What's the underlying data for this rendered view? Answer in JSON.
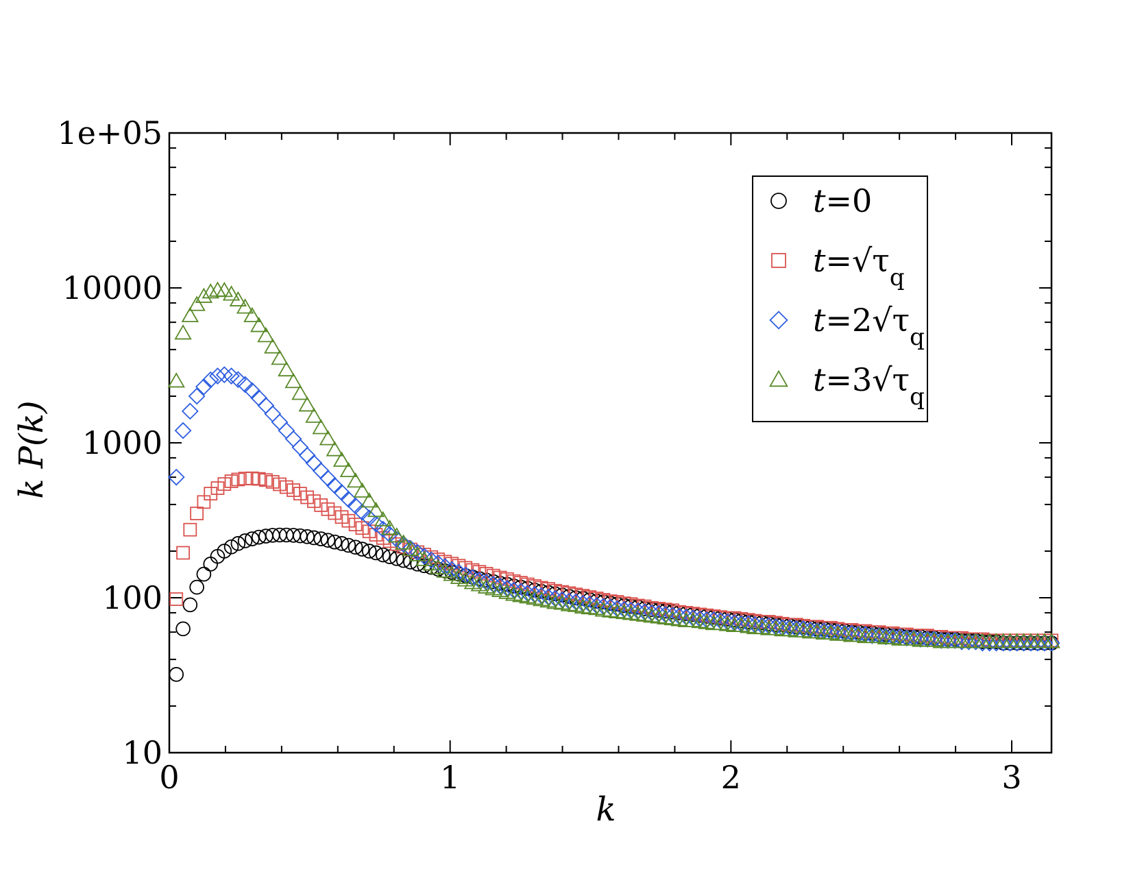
{
  "chart_data": {
    "type": "scatter",
    "title": "",
    "xlabel": "k",
    "ylabel": "k P(k)",
    "xscale": "linear",
    "yscale": "log",
    "xlim": [
      0,
      3.1416
    ],
    "ylim": [
      10,
      100000
    ],
    "grid": false,
    "legend_position": "top-right",
    "x_ticks": [
      {
        "value": 0,
        "label": "0"
      },
      {
        "value": 1,
        "label": "1"
      },
      {
        "value": 2,
        "label": "2"
      },
      {
        "value": 3,
        "label": "3"
      }
    ],
    "y_ticks": [
      {
        "value": 10,
        "label": "10"
      },
      {
        "value": 100,
        "label": "100"
      },
      {
        "value": 1000,
        "label": "1000"
      },
      {
        "value": 10000,
        "label": "10000"
      },
      {
        "value": 100000,
        "label": "1e+05"
      }
    ],
    "series": [
      {
        "name": "t=0",
        "legend": {
          "t": "t",
          "rest": "=0",
          "sub": ""
        },
        "marker": "circle",
        "color": "#000000",
        "x": [
          0.025,
          0.049,
          0.074,
          0.098,
          0.123,
          0.147,
          0.172,
          0.196,
          0.221,
          0.245,
          0.27,
          0.295,
          0.319,
          0.344,
          0.368,
          0.393,
          0.417,
          0.442,
          0.466,
          0.491,
          0.515,
          0.54,
          0.565,
          0.589,
          0.614,
          0.638,
          0.663,
          0.687,
          0.712,
          0.736,
          0.761,
          0.785,
          0.81,
          0.834,
          0.859,
          0.884,
          0.908,
          0.933,
          0.957,
          0.982,
          1.006,
          1.031,
          1.055,
          1.08,
          1.104,
          1.129,
          1.154,
          1.178,
          1.203,
          1.227,
          1.252,
          1.276,
          1.301,
          1.325,
          1.35,
          1.374,
          1.399,
          1.424,
          1.448,
          1.473,
          1.497,
          1.522,
          1.546,
          1.571,
          1.595,
          1.62,
          1.644,
          1.669,
          1.693,
          1.718,
          1.743,
          1.767,
          1.792,
          1.816,
          1.841,
          1.865,
          1.89,
          1.914,
          1.939,
          1.963,
          1.988,
          2.013,
          2.037,
          2.062,
          2.086,
          2.111,
          2.135,
          2.16,
          2.184,
          2.209,
          2.233,
          2.258,
          2.283,
          2.307,
          2.332,
          2.356,
          2.381,
          2.405,
          2.43,
          2.454,
          2.479,
          2.503,
          2.528,
          2.552,
          2.577,
          2.602,
          2.626,
          2.651,
          2.675,
          2.7,
          2.724,
          2.749,
          2.773,
          2.798,
          2.822,
          2.847,
          2.872,
          2.896,
          2.921,
          2.945,
          2.97,
          2.994,
          3.019,
          3.043,
          3.068,
          3.092,
          3.117,
          3.142
        ],
        "y": [
          32.0,
          63.0,
          90.0,
          117.0,
          142.0,
          165.0,
          185.0,
          200.0,
          213.0,
          224.0,
          233.0,
          240.0,
          246.0,
          250.0,
          253.0,
          254.0,
          254.0,
          253.0,
          251.0,
          248.0,
          244.0,
          240.0,
          235.0,
          229.0,
          224.0,
          218.0,
          212.0,
          206.0,
          200.0,
          195.0,
          189.0,
          184.0,
          179.0,
          174.0,
          170.0,
          165.0,
          161.0,
          157.0,
          153.0,
          149.0,
          146.0,
          142.0,
          139.0,
          136.0,
          133.0,
          130.0,
          127.0,
          124.0,
          122.0,
          119.0,
          117.0,
          115.0,
          112.0,
          110.0,
          108.0,
          106.0,
          104.0,
          102.0,
          100.0,
          99.0,
          97.0,
          95.0,
          94.0,
          92.0,
          91.0,
          89.0,
          88.0,
          87.0,
          85.0,
          84.0,
          83.0,
          82.0,
          81.0,
          80.0,
          79.0,
          78.0,
          77.0,
          76.0,
          75.0,
          74.0,
          73.0,
          72.0,
          71.0,
          70.0,
          70.0,
          69.0,
          68.0,
          67.0,
          67.0,
          66.0,
          65.0,
          65.0,
          64.0,
          63.0,
          63.0,
          62.0,
          62.0,
          61.0,
          60.0,
          60.0,
          59.0,
          59.0,
          58.0,
          58.0,
          57.0,
          57.0,
          56.0,
          56.0,
          56.0,
          55.0,
          55.0,
          54.0,
          54.0,
          54.0,
          53.0,
          53.0,
          53.0,
          52.0,
          52.0,
          52.0,
          51.0,
          51.0,
          51.0,
          51.0,
          51.0,
          51.0,
          51.0,
          51.0
        ]
      },
      {
        "name": "t=√τq",
        "legend": {
          "t": "t",
          "rest": "=√τ",
          "sub": "q"
        },
        "marker": "square",
        "color": "#d9534f",
        "x": [
          0.025,
          0.049,
          0.074,
          0.098,
          0.123,
          0.147,
          0.172,
          0.196,
          0.221,
          0.245,
          0.27,
          0.295,
          0.319,
          0.344,
          0.368,
          0.393,
          0.417,
          0.442,
          0.466,
          0.491,
          0.515,
          0.54,
          0.565,
          0.589,
          0.614,
          0.638,
          0.663,
          0.687,
          0.712,
          0.736,
          0.761,
          0.785,
          0.81,
          0.834,
          0.859,
          0.884,
          0.908,
          0.933,
          0.957,
          0.982,
          1.006,
          1.031,
          1.055,
          1.08,
          1.104,
          1.129,
          1.154,
          1.178,
          1.203,
          1.227,
          1.252,
          1.276,
          1.301,
          1.325,
          1.35,
          1.374,
          1.399,
          1.424,
          1.448,
          1.473,
          1.497,
          1.522,
          1.546,
          1.571,
          1.595,
          1.62,
          1.644,
          1.669,
          1.693,
          1.718,
          1.743,
          1.767,
          1.792,
          1.816,
          1.841,
          1.865,
          1.89,
          1.914,
          1.939,
          1.963,
          1.988,
          2.013,
          2.037,
          2.062,
          2.086,
          2.111,
          2.135,
          2.16,
          2.184,
          2.209,
          2.233,
          2.258,
          2.283,
          2.307,
          2.332,
          2.356,
          2.381,
          2.405,
          2.43,
          2.454,
          2.479,
          2.503,
          2.528,
          2.552,
          2.577,
          2.602,
          2.626,
          2.651,
          2.675,
          2.7,
          2.724,
          2.749,
          2.773,
          2.798,
          2.822,
          2.847,
          2.872,
          2.896,
          2.921,
          2.945,
          2.97,
          2.994,
          3.019,
          3.043,
          3.068,
          3.092,
          3.117,
          3.142
        ],
        "y": [
          98.0,
          195.0,
          275.0,
          350.0,
          415.0,
          470.0,
          510.0,
          542.0,
          565.0,
          580.0,
          588.0,
          590.0,
          585.0,
          575.0,
          560.0,
          540.0,
          518.0,
          495.0,
          470.0,
          445.0,
          420.0,
          396.0,
          373.0,
          352.0,
          332.0,
          314.0,
          297.0,
          282.0,
          268.0,
          255.0,
          243.0,
          232.0,
          222.0,
          213.0,
          205.0,
          197.0,
          190.0,
          183.0,
          177.0,
          171.0,
          166.0,
          161.0,
          156.0,
          151.0,
          147.0,
          143.0,
          139.0,
          135.0,
          132.0,
          128.0,
          125.0,
          122.0,
          119.0,
          116.0,
          114.0,
          111.0,
          109.0,
          107.0,
          105.0,
          103.0,
          101.0,
          99.0,
          97.0,
          95.0,
          94.0,
          92.0,
          91.0,
          89.0,
          88.0,
          86.0,
          85.0,
          84.0,
          83.0,
          81.0,
          80.0,
          79.0,
          78.0,
          77.0,
          76.0,
          75.0,
          74.0,
          74.0,
          73.0,
          72.0,
          71.0,
          70.0,
          70.0,
          69.0,
          68.0,
          67.0,
          67.0,
          66.0,
          65.0,
          65.0,
          64.0,
          64.0,
          63.0,
          62.0,
          62.0,
          61.0,
          61.0,
          60.0,
          60.0,
          59.0,
          59.0,
          58.0,
          58.0,
          57.0,
          57.0,
          57.0,
          56.0,
          56.0,
          55.0,
          55.0,
          55.0,
          54.0,
          54.0,
          54.0,
          53.0,
          53.0,
          53.0,
          53.0,
          53.0,
          53.0,
          53.0,
          53.0,
          53.0,
          53.0
        ]
      },
      {
        "name": "t=2√τq",
        "legend": {
          "t": "t",
          "rest": "=2√τ",
          "sub": "q"
        },
        "marker": "diamond",
        "color": "#2f5fe0",
        "x": [
          0.025,
          0.049,
          0.074,
          0.098,
          0.123,
          0.147,
          0.172,
          0.196,
          0.221,
          0.245,
          0.27,
          0.295,
          0.319,
          0.344,
          0.368,
          0.393,
          0.417,
          0.442,
          0.466,
          0.491,
          0.515,
          0.54,
          0.565,
          0.589,
          0.614,
          0.638,
          0.663,
          0.687,
          0.712,
          0.736,
          0.761,
          0.785,
          0.81,
          0.834,
          0.859,
          0.884,
          0.908,
          0.933,
          0.957,
          0.982,
          1.006,
          1.031,
          1.055,
          1.08,
          1.104,
          1.129,
          1.154,
          1.178,
          1.203,
          1.227,
          1.252,
          1.276,
          1.301,
          1.325,
          1.35,
          1.374,
          1.399,
          1.424,
          1.448,
          1.473,
          1.497,
          1.522,
          1.546,
          1.571,
          1.595,
          1.62,
          1.644,
          1.669,
          1.693,
          1.718,
          1.743,
          1.767,
          1.792,
          1.816,
          1.841,
          1.865,
          1.89,
          1.914,
          1.939,
          1.963,
          1.988,
          2.013,
          2.037,
          2.062,
          2.086,
          2.111,
          2.135,
          2.16,
          2.184,
          2.209,
          2.233,
          2.258,
          2.283,
          2.307,
          2.332,
          2.356,
          2.381,
          2.405,
          2.43,
          2.454,
          2.479,
          2.503,
          2.528,
          2.552,
          2.577,
          2.602,
          2.626,
          2.651,
          2.675,
          2.7,
          2.724,
          2.749,
          2.773,
          2.798,
          2.822,
          2.847,
          2.872,
          2.896,
          2.921,
          2.945,
          2.97,
          2.994,
          3.019,
          3.043,
          3.068,
          3.092,
          3.117,
          3.142
        ],
        "y": [
          600.0,
          1200.0,
          1600.0,
          2000.0,
          2300.0,
          2550.0,
          2700.0,
          2750.0,
          2700.0,
          2560.0,
          2380.0,
          2170.0,
          1950.0,
          1740.0,
          1540.0,
          1360.0,
          1200.0,
          1060.0,
          935.0,
          830.0,
          740.0,
          660.0,
          590.0,
          530.0,
          478.0,
          432.0,
          392.0,
          357.0,
          327.0,
          300.0,
          277.0,
          256.0,
          238.0,
          222.0,
          208.0,
          196.0,
          185.0,
          175.0,
          167.0,
          159.0,
          152.0,
          146.0,
          140.0,
          135.0,
          130.0,
          126.0,
          122.0,
          119.0,
          115.0,
          112.0,
          110.0,
          107.0,
          105.0,
          103.0,
          101.0,
          99.0,
          97.0,
          95.0,
          94.0,
          92.0,
          91.0,
          89.0,
          88.0,
          87.0,
          85.0,
          84.0,
          83.0,
          82.0,
          81.0,
          80.0,
          79.0,
          78.0,
          77.0,
          76.0,
          75.0,
          74.0,
          73.0,
          72.0,
          72.0,
          71.0,
          70.0,
          69.0,
          68.0,
          68.0,
          67.0,
          66.0,
          66.0,
          65.0,
          64.0,
          64.0,
          63.0,
          63.0,
          62.0,
          61.0,
          61.0,
          60.0,
          60.0,
          59.0,
          59.0,
          58.0,
          58.0,
          57.0,
          57.0,
          56.0,
          56.0,
          56.0,
          55.0,
          55.0,
          54.0,
          54.0,
          54.0,
          53.0,
          53.0,
          53.0,
          52.0,
          52.0,
          52.0,
          51.0,
          51.0,
          51.0,
          51.0,
          51.0,
          51.0,
          51.0,
          51.0,
          51.0,
          51.0,
          51.0
        ]
      },
      {
        "name": "t=3√τq",
        "legend": {
          "t": "t",
          "rest": "=3√τ",
          "sub": "q"
        },
        "marker": "triangle",
        "color": "#5a8a2a",
        "x": [
          0.025,
          0.049,
          0.074,
          0.098,
          0.123,
          0.147,
          0.172,
          0.196,
          0.221,
          0.245,
          0.27,
          0.295,
          0.319,
          0.344,
          0.368,
          0.393,
          0.417,
          0.442,
          0.466,
          0.491,
          0.515,
          0.54,
          0.565,
          0.589,
          0.614,
          0.638,
          0.663,
          0.687,
          0.712,
          0.736,
          0.761,
          0.785,
          0.81,
          0.834,
          0.859,
          0.884,
          0.908,
          0.933,
          0.957,
          0.982,
          1.006,
          1.031,
          1.055,
          1.08,
          1.104,
          1.129,
          1.154,
          1.178,
          1.203,
          1.227,
          1.252,
          1.276,
          1.301,
          1.325,
          1.35,
          1.374,
          1.399,
          1.424,
          1.448,
          1.473,
          1.497,
          1.522,
          1.546,
          1.571,
          1.595,
          1.62,
          1.644,
          1.669,
          1.693,
          1.718,
          1.743,
          1.767,
          1.792,
          1.816,
          1.841,
          1.865,
          1.89,
          1.914,
          1.939,
          1.963,
          1.988,
          2.013,
          2.037,
          2.062,
          2.086,
          2.111,
          2.135,
          2.16,
          2.184,
          2.209,
          2.233,
          2.258,
          2.283,
          2.307,
          2.332,
          2.356,
          2.381,
          2.405,
          2.43,
          2.454,
          2.479,
          2.503,
          2.528,
          2.552,
          2.577,
          2.602,
          2.626,
          2.651,
          2.675,
          2.7,
          2.724,
          2.749,
          2.773,
          2.798,
          2.822,
          2.847,
          2.872,
          2.896,
          2.921,
          2.945,
          2.97,
          2.994,
          3.019,
          3.043,
          3.068,
          3.092,
          3.117,
          3.142
        ],
        "y": [
          2500.0,
          5100.0,
          6600.0,
          7800.0,
          8800.0,
          9400.0,
          9650.0,
          9600.0,
          9100.0,
          8350.0,
          7500.0,
          6600.0,
          5700.0,
          4900.0,
          4150.0,
          3500.0,
          2950.0,
          2480.0,
          2080.0,
          1750.0,
          1480.0,
          1250.0,
          1060.0,
          900.0,
          770.0,
          660.0,
          565.0,
          487.0,
          420.0,
          365.0,
          318.0,
          280.0,
          250.0,
          225.0,
          205.0,
          189.0,
          176.0,
          165.0,
          156.0,
          148.0,
          141.0,
          135.0,
          130.0,
          125.0,
          121.0,
          117.0,
          114.0,
          111.0,
          108.0,
          105.0,
          103.0,
          101.0,
          99.0,
          97.0,
          95.0,
          93.0,
          92.0,
          90.0,
          89.0,
          87.0,
          86.0,
          85.0,
          83.0,
          82.0,
          81.0,
          80.0,
          79.0,
          78.0,
          77.0,
          76.0,
          75.0,
          74.0,
          73.0,
          72.0,
          71.0,
          71.0,
          70.0,
          69.0,
          68.0,
          68.0,
          67.0,
          66.0,
          66.0,
          65.0,
          64.0,
          64.0,
          63.0,
          63.0,
          62.0,
          62.0,
          61.0,
          61.0,
          60.0,
          60.0,
          59.0,
          59.0,
          58.0,
          58.0,
          57.0,
          57.0,
          56.0,
          56.0,
          56.0,
          55.0,
          55.0,
          54.0,
          54.0,
          54.0,
          53.0,
          53.0,
          53.0,
          52.0,
          52.0,
          52.0,
          52.0,
          52.0,
          52.0,
          52.0,
          52.0,
          52.0,
          52.0,
          52.0,
          52.0,
          52.0,
          52.0,
          52.0,
          52.0,
          52.0
        ]
      }
    ]
  }
}
